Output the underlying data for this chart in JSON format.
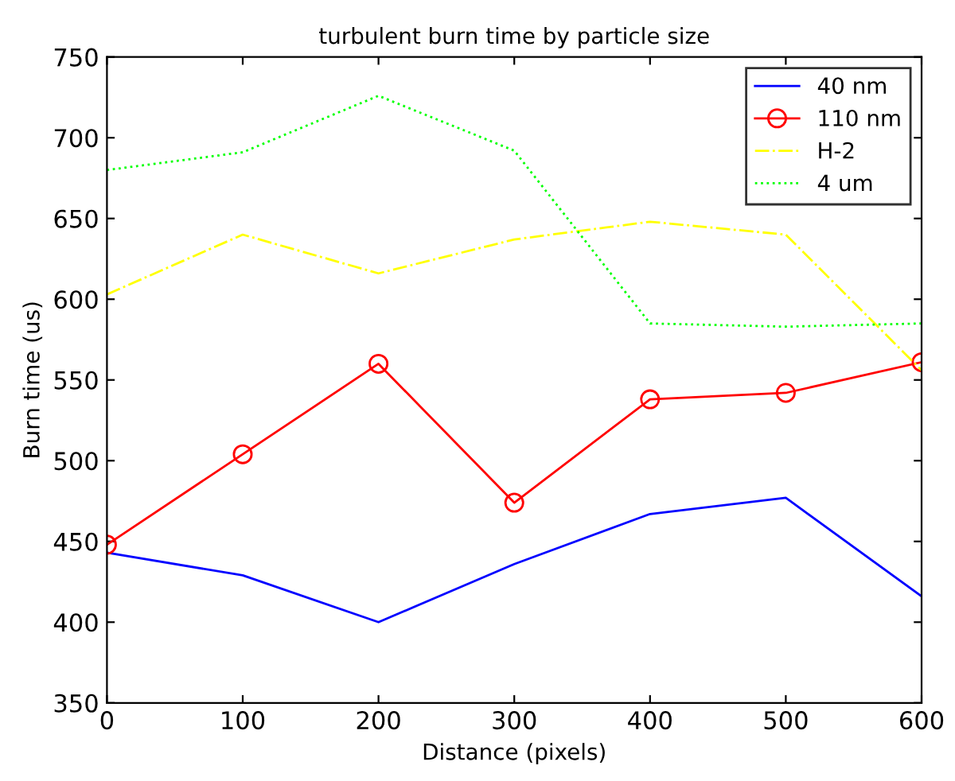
{
  "chart_data": {
    "type": "line",
    "title": "turbulent burn time by particle size",
    "xlabel": "Distance (pixels)",
    "ylabel": "Burn time (us)",
    "x": [
      0,
      100,
      200,
      300,
      400,
      500,
      600
    ],
    "series": [
      {
        "name": "40 nm",
        "color": "#0000ff",
        "values": [
          443,
          429,
          400,
          436,
          467,
          477,
          416
        ],
        "marker": "none",
        "line_style": "solid"
      },
      {
        "name": "110 nm",
        "color": "#ff0000",
        "values": [
          448,
          504,
          560,
          474,
          538,
          542,
          561
        ],
        "marker": "circle",
        "line_style": "solid"
      },
      {
        "name": "H-2",
        "color": "#ffff00",
        "values": [
          603,
          640,
          616,
          637,
          648,
          640,
          556
        ],
        "marker": "none",
        "line_style": "dashdot"
      },
      {
        "name": "4 um",
        "color": "#00ff00",
        "values": [
          680,
          691,
          726,
          692,
          585,
          583,
          585
        ],
        "marker": "none",
        "line_style": "dotted"
      }
    ],
    "xlim": [
      0,
      600
    ],
    "xticks": [
      0,
      100,
      200,
      300,
      400,
      500,
      600
    ],
    "ylim": [
      350,
      750
    ],
    "yticks": [
      350,
      400,
      450,
      500,
      550,
      600,
      650,
      700,
      750
    ],
    "grid": false,
    "legend": "top right"
  }
}
